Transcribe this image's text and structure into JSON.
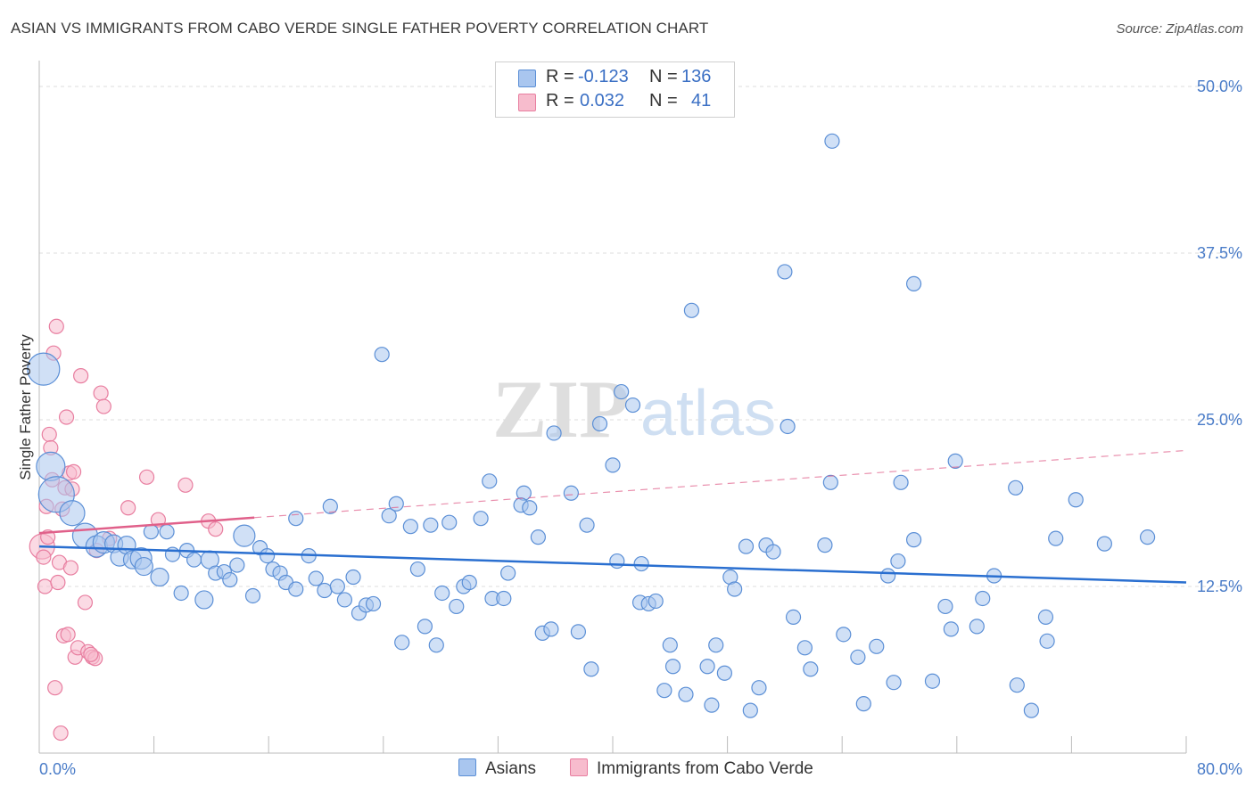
{
  "title": "ASIAN VS IMMIGRANTS FROM CABO VERDE SINGLE FATHER POVERTY CORRELATION CHART",
  "source": "Source: ZipAtlas.com",
  "watermark": {
    "zip": "ZIP",
    "atlas": "atlas"
  },
  "legend": {
    "rows": [
      {
        "r_label": "R =",
        "r_value": "-0.123",
        "n_label": "N =",
        "n_value": "136",
        "color": "#a9c6ef",
        "border": "#5b8fd6"
      },
      {
        "r_label": "R =",
        "r_value": "0.032",
        "n_label": "N =",
        "n_value": "41",
        "color": "#f7bccd",
        "border": "#e87ea0"
      }
    ]
  },
  "bottom_legend": [
    {
      "label": "Asians",
      "color": "#a9c6ef",
      "border": "#5b8fd6"
    },
    {
      "label": "Immigrants from Cabo Verde",
      "color": "#f7bccd",
      "border": "#e87ea0"
    }
  ],
  "chart_data": {
    "type": "scatter",
    "title": "ASIAN VS IMMIGRANTS FROM CABO VERDE SINGLE FATHER POVERTY CORRELATION CHART",
    "xlabel": "",
    "ylabel": "Single Father Poverty",
    "xlim": [
      0,
      80
    ],
    "ylim": [
      0,
      50
    ],
    "x_tick_labels": [
      "0.0%",
      "80.0%"
    ],
    "y_ticks": [
      12.5,
      25.0,
      37.5,
      50.0
    ],
    "y_tick_labels": [
      "12.5%",
      "25.0%",
      "37.5%",
      "50.0%"
    ],
    "series": [
      {
        "name": "Asians",
        "color": "#a9c6ef",
        "stroke": "#5b8fd6",
        "trend": {
          "x": [
            0,
            80
          ],
          "y": [
            15.5,
            12.8
          ],
          "color": "#2a6fd0"
        },
        "points": [
          [
            0.3,
            28.8,
            18
          ],
          [
            0.8,
            21.5,
            16
          ],
          [
            1.2,
            19.4,
            20
          ],
          [
            2.3,
            18.0,
            14
          ],
          [
            3.2,
            16.3,
            14
          ],
          [
            4.0,
            15.5,
            12
          ],
          [
            4.5,
            15.8,
            12
          ],
          [
            5.2,
            15.7,
            10
          ],
          [
            5.6,
            14.7,
            10
          ],
          [
            6.1,
            15.6,
            10
          ],
          [
            6.5,
            14.5,
            10
          ],
          [
            7.1,
            14.6,
            12
          ],
          [
            7.3,
            14.0,
            10
          ],
          [
            7.8,
            16.6,
            8
          ],
          [
            8.4,
            13.2,
            10
          ],
          [
            8.9,
            16.6,
            8
          ],
          [
            9.3,
            14.9,
            8
          ],
          [
            9.9,
            12.0,
            8
          ],
          [
            10.3,
            15.2,
            8
          ],
          [
            10.8,
            14.5,
            8
          ],
          [
            11.5,
            11.5,
            10
          ],
          [
            11.9,
            14.5,
            10
          ],
          [
            12.3,
            13.5,
            8
          ],
          [
            12.9,
            13.6,
            8
          ],
          [
            13.3,
            13.0,
            8
          ],
          [
            13.8,
            14.1,
            8
          ],
          [
            14.3,
            16.3,
            12
          ],
          [
            14.9,
            11.8,
            8
          ],
          [
            15.4,
            15.4,
            8
          ],
          [
            15.9,
            14.8,
            8
          ],
          [
            16.3,
            13.8,
            8
          ],
          [
            16.8,
            13.5,
            8
          ],
          [
            17.2,
            12.8,
            8
          ],
          [
            17.9,
            12.3,
            8
          ],
          [
            17.9,
            17.6,
            8
          ],
          [
            18.8,
            14.8,
            8
          ],
          [
            19.3,
            13.1,
            8
          ],
          [
            19.9,
            12.2,
            8
          ],
          [
            20.3,
            18.5,
            8
          ],
          [
            20.8,
            12.5,
            8
          ],
          [
            21.3,
            11.5,
            8
          ],
          [
            21.9,
            13.2,
            8
          ],
          [
            22.3,
            10.5,
            8
          ],
          [
            22.8,
            11.1,
            8
          ],
          [
            23.3,
            11.2,
            8
          ],
          [
            23.9,
            29.9,
            8
          ],
          [
            24.4,
            17.8,
            8
          ],
          [
            24.9,
            18.7,
            8
          ],
          [
            25.3,
            8.3,
            8
          ],
          [
            25.9,
            17.0,
            8
          ],
          [
            26.4,
            13.8,
            8
          ],
          [
            26.9,
            9.5,
            8
          ],
          [
            27.3,
            17.1,
            8
          ],
          [
            27.7,
            8.1,
            8
          ],
          [
            28.1,
            12.0,
            8
          ],
          [
            28.6,
            17.3,
            8
          ],
          [
            29.1,
            11.0,
            8
          ],
          [
            29.6,
            12.5,
            8
          ],
          [
            30.0,
            12.8,
            8
          ],
          [
            30.8,
            17.6,
            8
          ],
          [
            31.4,
            20.4,
            8
          ],
          [
            31.6,
            11.6,
            8
          ],
          [
            32.4,
            11.6,
            8
          ],
          [
            32.7,
            13.5,
            8
          ],
          [
            33.8,
            19.5,
            8
          ],
          [
            33.6,
            18.6,
            8
          ],
          [
            34.2,
            18.4,
            8
          ],
          [
            34.8,
            16.2,
            8
          ],
          [
            35.1,
            9.0,
            8
          ],
          [
            35.7,
            9.3,
            8
          ],
          [
            35.9,
            24.0,
            8
          ],
          [
            37.1,
            19.5,
            8
          ],
          [
            37.6,
            9.1,
            8
          ],
          [
            38.2,
            17.1,
            8
          ],
          [
            38.5,
            6.3,
            8
          ],
          [
            39.1,
            24.7,
            8
          ],
          [
            40.0,
            21.6,
            8
          ],
          [
            40.3,
            14.4,
            8
          ],
          [
            40.6,
            27.1,
            8
          ],
          [
            41.4,
            26.1,
            8
          ],
          [
            41.9,
            11.3,
            8
          ],
          [
            42.0,
            14.2,
            8
          ],
          [
            42.5,
            11.2,
            8
          ],
          [
            43.0,
            11.4,
            8
          ],
          [
            43.6,
            4.7,
            8
          ],
          [
            44.0,
            8.1,
            8
          ],
          [
            44.2,
            6.5,
            8
          ],
          [
            45.1,
            4.4,
            8
          ],
          [
            45.5,
            33.2,
            8
          ],
          [
            46.6,
            6.5,
            8
          ],
          [
            46.9,
            3.6,
            8
          ],
          [
            47.2,
            8.1,
            8
          ],
          [
            47.8,
            6.0,
            8
          ],
          [
            48.2,
            13.2,
            8
          ],
          [
            48.5,
            12.3,
            8
          ],
          [
            49.3,
            15.5,
            8
          ],
          [
            49.6,
            3.2,
            8
          ],
          [
            50.2,
            4.9,
            8
          ],
          [
            50.7,
            15.6,
            8
          ],
          [
            51.2,
            15.1,
            8
          ],
          [
            52.0,
            36.1,
            8
          ],
          [
            52.2,
            24.5,
            8
          ],
          [
            52.6,
            10.2,
            8
          ],
          [
            53.4,
            7.9,
            8
          ],
          [
            53.8,
            6.3,
            8
          ],
          [
            54.8,
            15.6,
            8
          ],
          [
            55.2,
            20.3,
            8
          ],
          [
            55.3,
            45.9,
            8
          ],
          [
            56.1,
            8.9,
            8
          ],
          [
            57.1,
            7.2,
            8
          ],
          [
            57.5,
            3.7,
            8
          ],
          [
            58.4,
            8.0,
            8
          ],
          [
            59.2,
            13.3,
            8
          ],
          [
            59.6,
            5.3,
            8
          ],
          [
            59.9,
            14.4,
            8
          ],
          [
            60.1,
            20.3,
            8
          ],
          [
            61.0,
            16.0,
            8
          ],
          [
            61.0,
            35.2,
            8
          ],
          [
            62.3,
            5.4,
            8
          ],
          [
            63.2,
            11.0,
            8
          ],
          [
            63.6,
            9.3,
            8
          ],
          [
            63.9,
            21.9,
            8
          ],
          [
            65.4,
            9.5,
            8
          ],
          [
            65.8,
            11.6,
            8
          ],
          [
            66.6,
            13.3,
            8
          ],
          [
            68.1,
            19.9,
            8
          ],
          [
            68.2,
            5.1,
            8
          ],
          [
            69.2,
            3.2,
            8
          ],
          [
            70.2,
            10.2,
            8
          ],
          [
            70.3,
            8.4,
            8
          ],
          [
            70.9,
            16.1,
            8
          ],
          [
            72.3,
            19.0,
            8
          ],
          [
            74.3,
            15.7,
            8
          ],
          [
            77.3,
            16.2,
            8
          ]
        ]
      },
      {
        "name": "Immigrants from Cabo Verde",
        "color": "#f7bccd",
        "stroke": "#e87ea0",
        "trend": {
          "x": [
            0,
            80
          ],
          "y": [
            16.5,
            22.7
          ],
          "solid_until": 15,
          "color": "#e0608a"
        },
        "points": [
          [
            0.2,
            15.5,
            14
          ],
          [
            0.3,
            14.7,
            8
          ],
          [
            0.4,
            12.5,
            8
          ],
          [
            0.5,
            18.5,
            8
          ],
          [
            0.7,
            23.9,
            8
          ],
          [
            0.8,
            22.9,
            8
          ],
          [
            0.9,
            20.5,
            8
          ],
          [
            1.0,
            30.0,
            8
          ],
          [
            1.1,
            4.9,
            8
          ],
          [
            1.2,
            32.0,
            8
          ],
          [
            1.3,
            12.8,
            8
          ],
          [
            1.4,
            14.3,
            8
          ],
          [
            1.5,
            1.5,
            8
          ],
          [
            1.6,
            18.3,
            8
          ],
          [
            1.7,
            8.8,
            8
          ],
          [
            1.8,
            19.9,
            8
          ],
          [
            1.9,
            25.2,
            8
          ],
          [
            2.0,
            8.9,
            8
          ],
          [
            2.1,
            21.0,
            8
          ],
          [
            2.3,
            19.8,
            8
          ],
          [
            2.4,
            21.1,
            8
          ],
          [
            2.5,
            7.2,
            8
          ],
          [
            2.7,
            7.9,
            8
          ],
          [
            2.9,
            28.3,
            8
          ],
          [
            3.2,
            11.3,
            8
          ],
          [
            3.4,
            7.6,
            8
          ],
          [
            3.7,
            7.2,
            8
          ],
          [
            3.9,
            7.1,
            8
          ],
          [
            4.0,
            15.2,
            8
          ],
          [
            4.3,
            27.0,
            8
          ],
          [
            4.5,
            26.0,
            8
          ],
          [
            4.9,
            16.1,
            8
          ],
          [
            6.2,
            18.4,
            8
          ],
          [
            7.5,
            20.7,
            8
          ],
          [
            8.3,
            17.5,
            8
          ],
          [
            10.2,
            20.1,
            8
          ],
          [
            11.8,
            17.4,
            8
          ],
          [
            12.3,
            16.8,
            8
          ],
          [
            3.6,
            7.4,
            8
          ],
          [
            2.2,
            13.9,
            8
          ],
          [
            0.6,
            16.2,
            8
          ]
        ]
      }
    ]
  }
}
